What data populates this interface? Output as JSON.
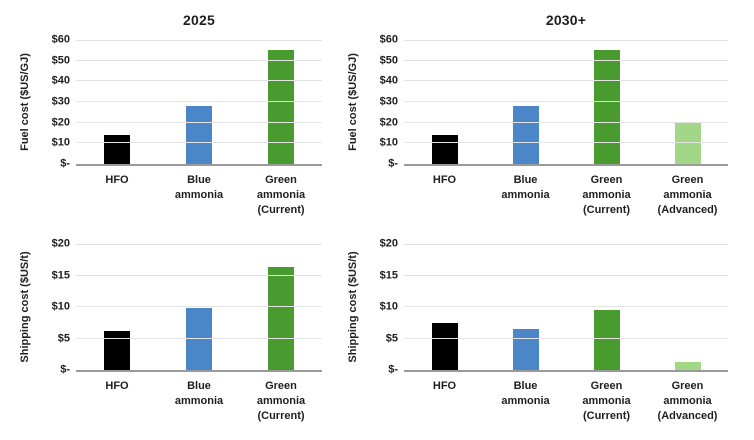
{
  "page": {
    "background": "#ffffff"
  },
  "colors": {
    "bar_black": "#000000",
    "bar_blue": "#4a86c8",
    "bar_green_current": "#4a9b2f",
    "bar_green_advanced": "#a2d787",
    "gridline": "#e4e4e4",
    "axis_line": "#9a9a9a",
    "text": "#1f1f1f"
  },
  "column_titles": [
    "2025",
    "2030+"
  ],
  "chart_data": [
    {
      "id": "fuel-cost-2025",
      "type": "bar",
      "title": "2025",
      "ylabel": "Fuel cost ($US/GJ)",
      "ylim": [
        0,
        60
      ],
      "ytick_values": [
        0,
        10,
        20,
        30,
        40,
        50,
        60
      ],
      "ytick_labels": [
        "$-",
        "$10",
        "$20",
        "$30",
        "$40",
        "$50",
        "$60"
      ],
      "categories": [
        "HFO",
        "Blue\nammonia",
        "Green\nammonia\n(Current)"
      ],
      "values": [
        14,
        28,
        55
      ],
      "bar_colors": [
        "#000000",
        "#4a86c8",
        "#4a9b2f"
      ],
      "grid": true,
      "legend": "none"
    },
    {
      "id": "fuel-cost-2030",
      "type": "bar",
      "title": "2030+",
      "ylabel": "Fuel cost ($US/GJ)",
      "ylim": [
        0,
        60
      ],
      "ytick_values": [
        0,
        10,
        20,
        30,
        40,
        50,
        60
      ],
      "ytick_labels": [
        "$-",
        "$10",
        "$20",
        "$30",
        "$40",
        "$50",
        "$60"
      ],
      "categories": [
        "HFO",
        "Blue\nammonia",
        "Green\nammonia\n(Current)",
        "Green\nammonia\n(Advanced)"
      ],
      "values": [
        14,
        28,
        55,
        20
      ],
      "bar_colors": [
        "#000000",
        "#4a86c8",
        "#4a9b2f",
        "#a2d787"
      ],
      "grid": true,
      "legend": "none"
    },
    {
      "id": "shipping-cost-2025",
      "type": "bar",
      "title": "",
      "ylabel": "Shipping cost ($US/t)",
      "ylim": [
        0,
        20
      ],
      "ytick_values": [
        0,
        5,
        10,
        15,
        20
      ],
      "ytick_labels": [
        "$-",
        "$5",
        "$10",
        "$15",
        "$20"
      ],
      "categories": [
        "HFO",
        "Blue\nammonia",
        "Green\nammonia\n(Current)"
      ],
      "values": [
        6.2,
        9.8,
        16.3
      ],
      "bar_colors": [
        "#000000",
        "#4a86c8",
        "#4a9b2f"
      ],
      "grid": true,
      "legend": "none"
    },
    {
      "id": "shipping-cost-2030",
      "type": "bar",
      "title": "",
      "ylabel": "Shipping cost ($US/t)",
      "ylim": [
        0,
        20
      ],
      "ytick_values": [
        0,
        5,
        10,
        15,
        20
      ],
      "ytick_labels": [
        "$-",
        "$5",
        "$10",
        "$15",
        "$20"
      ],
      "categories": [
        "HFO",
        "Blue\nammonia",
        "Green\nammonia\n(Current)",
        "Green\nammonia\n(Advanced)"
      ],
      "values": [
        7.5,
        6.5,
        9.5,
        1.2
      ],
      "bar_colors": [
        "#000000",
        "#4a86c8",
        "#4a9b2f",
        "#a2d787"
      ],
      "grid": true,
      "legend": "none"
    }
  ]
}
